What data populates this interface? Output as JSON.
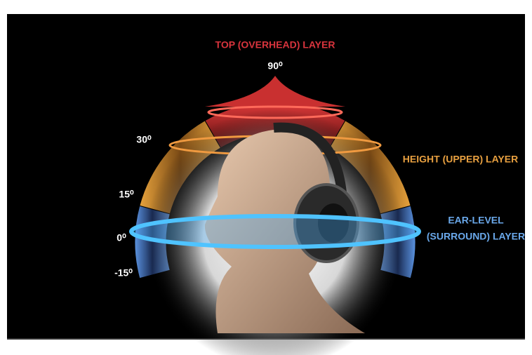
{
  "title": "TOP (OVERHEAD) LAYER",
  "layers": {
    "height": "HEIGHT (UPPER) LAYER",
    "ear_level": [
      "EAR-LEVEL",
      "(SURROUND) LAYER"
    ]
  },
  "angles": {
    "top": "90⁰",
    "a30": "30⁰",
    "a15": "15⁰",
    "a0": "0⁰",
    "a_neg15": "-15⁰"
  }
}
